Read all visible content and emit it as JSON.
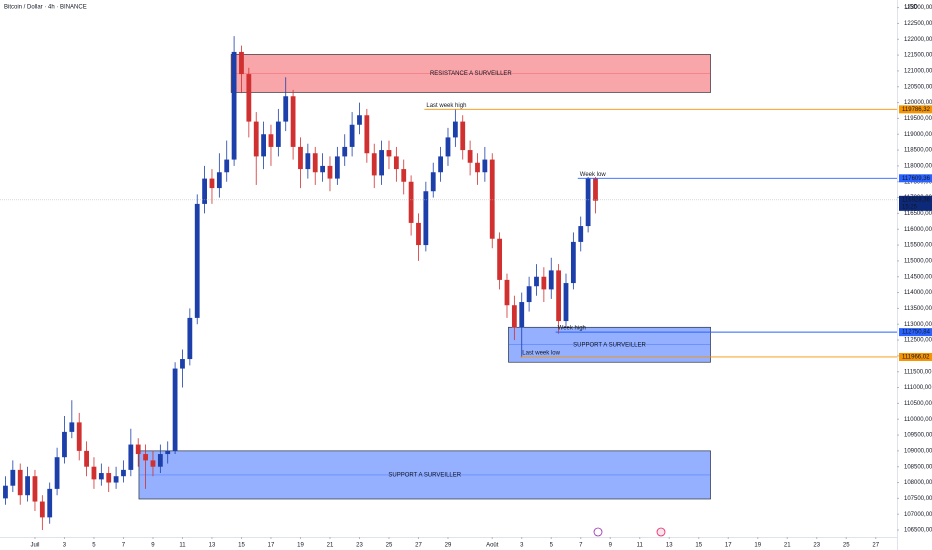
{
  "chart_data": {
    "type": "candlestick",
    "title": "Bitcoin / Dollar · 4h · BINANCE",
    "currency": "USD",
    "up_color": "#1c3faa",
    "down_color": "#d0302f",
    "x": [
      -2,
      -1.5,
      -1,
      -0.5,
      0,
      0.5,
      1,
      1.5,
      2,
      2.5,
      3,
      3.5,
      4,
      4.5,
      5,
      5.5,
      6,
      6.5,
      7,
      7.5,
      8,
      8.5,
      9,
      9.5,
      10,
      10.5,
      11,
      11.5,
      12,
      12.5,
      13,
      13.5,
      14,
      14.5,
      15,
      15.5,
      16,
      16.5,
      17,
      17.5,
      18,
      18.5,
      19,
      19.5,
      20,
      20.5,
      21,
      21.5,
      22,
      22.5,
      23,
      23.5,
      24,
      24.5,
      25,
      25.5,
      26,
      26.5,
      27,
      27.5,
      28,
      28.5,
      29,
      29.5,
      30,
      30.5,
      31,
      31.5,
      32,
      32.5,
      33,
      33.5,
      34,
      34.5,
      35,
      35.5,
      36,
      36.5,
      37,
      37.5,
      38
    ],
    "open": [
      107500,
      107900,
      108400,
      107600,
      108200,
      107400,
      106900,
      107800,
      108800,
      109600,
      109900,
      109000,
      108500,
      108100,
      108300,
      108000,
      108200,
      108400,
      109200,
      108900,
      108700,
      108500,
      108900,
      109000,
      111600,
      111900,
      113200,
      116800,
      117600,
      117300,
      117800,
      118200,
      121600,
      120900,
      119400,
      118300,
      119000,
      118600,
      119400,
      120200,
      118600,
      117900,
      118400,
      117800,
      118000,
      117600,
      118300,
      118600,
      119300,
      119600,
      118400,
      117700,
      118500,
      118300,
      117900,
      117500,
      116200,
      115500,
      117200,
      117800,
      118300,
      118900,
      119400,
      118500,
      118100,
      117800,
      118200,
      115700,
      114400,
      113600,
      112900,
      113700,
      114200,
      114500,
      114100,
      114700,
      113100,
      114300,
      115600,
      116100,
      117600
    ],
    "high": [
      108200,
      108700,
      108600,
      108500,
      108400,
      107600,
      108000,
      109100,
      110100,
      110600,
      110200,
      109300,
      108800,
      108600,
      108500,
      108500,
      108700,
      109700,
      109400,
      109200,
      109000,
      109200,
      109300,
      111800,
      112200,
      113500,
      117100,
      118000,
      117900,
      118400,
      118800,
      122100,
      121800,
      121100,
      119700,
      119400,
      119300,
      119800,
      120800,
      120400,
      118900,
      118700,
      118600,
      118400,
      118300,
      118600,
      119000,
      119700,
      120000,
      119800,
      118700,
      118800,
      118800,
      118600,
      118200,
      117700,
      116500,
      117500,
      118100,
      118600,
      119200,
      119800,
      119600,
      118800,
      118400,
      118600,
      118400,
      115900,
      114600,
      113900,
      114000,
      114500,
      114900,
      114800,
      115100,
      114900,
      114600,
      115900,
      116400,
      117650,
      117650
    ],
    "low": [
      107300,
      107700,
      107300,
      107400,
      107100,
      106500,
      106700,
      107600,
      108600,
      109400,
      108700,
      108200,
      107800,
      107900,
      107700,
      107800,
      108000,
      108200,
      108500,
      107800,
      108200,
      108300,
      108600,
      108900,
      111000,
      111700,
      113000,
      116500,
      116800,
      117000,
      117500,
      118000,
      120300,
      118900,
      117400,
      117900,
      118000,
      118300,
      119100,
      118200,
      117300,
      117600,
      117400,
      117500,
      117200,
      117400,
      118000,
      118300,
      119000,
      118100,
      117300,
      117400,
      117900,
      117500,
      117100,
      115800,
      115000,
      115300,
      117000,
      117500,
      118000,
      118600,
      118200,
      117700,
      117400,
      117500,
      115400,
      114100,
      113200,
      112500,
      111950,
      113400,
      113900,
      113700,
      113800,
      112700,
      112900,
      114100,
      115300,
      115900,
      116500
    ],
    "close": [
      107900,
      108400,
      107600,
      108200,
      107400,
      106900,
      107800,
      108800,
      109600,
      109900,
      109000,
      108500,
      108100,
      108300,
      108000,
      108200,
      108400,
      109200,
      108900,
      108700,
      108500,
      108900,
      109000,
      111600,
      111900,
      113200,
      116800,
      117600,
      117300,
      117800,
      118200,
      121600,
      120900,
      119400,
      118300,
      119000,
      118600,
      119400,
      120200,
      118600,
      117900,
      118400,
      117800,
      118000,
      117600,
      118300,
      118600,
      119300,
      119600,
      118400,
      117700,
      118500,
      118300,
      117900,
      117500,
      116200,
      115500,
      117200,
      117800,
      118300,
      118900,
      119400,
      118500,
      118100,
      117800,
      118200,
      115700,
      114400,
      113600,
      112900,
      113700,
      114200,
      114500,
      114100,
      114700,
      113100,
      114300,
      115600,
      116100,
      117600,
      116900
    ],
    "xlim": [
      -2.37,
      58.44
    ],
    "xticks": [
      {
        "value": 0,
        "label": "Juil"
      },
      {
        "value": 2,
        "label": "3"
      },
      {
        "value": 4,
        "label": "5"
      },
      {
        "value": 6,
        "label": "7"
      },
      {
        "value": 8,
        "label": "9"
      },
      {
        "value": 10,
        "label": "11"
      },
      {
        "value": 12,
        "label": "13"
      },
      {
        "value": 14,
        "label": "15"
      },
      {
        "value": 16,
        "label": "17"
      },
      {
        "value": 18,
        "label": "19"
      },
      {
        "value": 20,
        "label": "21"
      },
      {
        "value": 22,
        "label": "23"
      },
      {
        "value": 24,
        "label": "25"
      },
      {
        "value": 26,
        "label": "27"
      },
      {
        "value": 28,
        "label": "29"
      },
      {
        "value": 31,
        "label": "Août"
      },
      {
        "value": 33,
        "label": "3"
      },
      {
        "value": 35,
        "label": "5"
      },
      {
        "value": 37,
        "label": "7"
      },
      {
        "value": 39,
        "label": "9"
      },
      {
        "value": 41,
        "label": "11"
      },
      {
        "value": 43,
        "label": "13"
      },
      {
        "value": 45,
        "label": "15"
      },
      {
        "value": 47,
        "label": "17"
      },
      {
        "value": 49,
        "label": "19"
      },
      {
        "value": 51,
        "label": "21"
      },
      {
        "value": 53,
        "label": "23"
      },
      {
        "value": 55,
        "label": "25"
      },
      {
        "value": 57,
        "label": "27"
      }
    ],
    "ylim": [
      106280,
      123240
    ],
    "yticks": [
      {
        "value": 106500,
        "label": "106500,00"
      },
      {
        "value": 107000,
        "label": "107000,00"
      },
      {
        "value": 107500,
        "label": "107500,00"
      },
      {
        "value": 108000,
        "label": "108000,00"
      },
      {
        "value": 108500,
        "label": "108500,00"
      },
      {
        "value": 109000,
        "label": "109000,00"
      },
      {
        "value": 109500,
        "label": "109500,00"
      },
      {
        "value": 110000,
        "label": "110000,00"
      },
      {
        "value": 110500,
        "label": "110500,00"
      },
      {
        "value": 111000,
        "label": "111000,00"
      },
      {
        "value": 111500,
        "label": "111500,00"
      },
      {
        "value": 112000,
        "label": "112000,00"
      },
      {
        "value": 112500,
        "label": "112500,00"
      },
      {
        "value": 113000,
        "label": "113000,00"
      },
      {
        "value": 113500,
        "label": "113500,00"
      },
      {
        "value": 114000,
        "label": "114000,00"
      },
      {
        "value": 114500,
        "label": "114500,00"
      },
      {
        "value": 115000,
        "label": "115000,00"
      },
      {
        "value": 115500,
        "label": "115500,00"
      },
      {
        "value": 116000,
        "label": "116000,00"
      },
      {
        "value": 116500,
        "label": "116500,00"
      },
      {
        "value": 117000,
        "label": "117000,00"
      },
      {
        "value": 117500,
        "label": "117500,00"
      },
      {
        "value": 118000,
        "label": "118000,00"
      },
      {
        "value": 118500,
        "label": "118500,00"
      },
      {
        "value": 119000,
        "label": "119000,00"
      },
      {
        "value": 119500,
        "label": "119500,00"
      },
      {
        "value": 120000,
        "label": "120000,00"
      },
      {
        "value": 120500,
        "label": "120500,00"
      },
      {
        "value": 121000,
        "label": "121000,00"
      },
      {
        "value": 121500,
        "label": "121500,00"
      },
      {
        "value": 122000,
        "label": "122000,00"
      },
      {
        "value": 122500,
        "label": "122500,00"
      },
      {
        "value": 123000,
        "label": "123000,00"
      }
    ],
    "zones": [
      {
        "label": "RESISTANCE A SURVEILLER",
        "range": [
          120320,
          121520
        ],
        "x": [
          13.3,
          45.8
        ],
        "color": "#f44d57"
      },
      {
        "label": "SUPPORT A SURVEILLER",
        "range": [
          111800,
          112905
        ],
        "x": [
          32.1,
          45.8
        ],
        "color": "#2962ff"
      },
      {
        "label": "SUPPORT A SURVEILLER",
        "range": [
          107480,
          109000
        ],
        "x": [
          7.05,
          45.8
        ],
        "color": "#2962ff"
      }
    ],
    "levels": [
      {
        "name": "Last week high",
        "value": 119786.32,
        "label": "119786,32",
        "x": 26.4,
        "color": "#f59300"
      },
      {
        "name": "Week low",
        "value": 117609.36,
        "label": "117609,36",
        "x": 36.8,
        "color": "#2962ff"
      },
      {
        "name": "Week high",
        "value": 112750.84,
        "label": "112750,84",
        "x": 35.3,
        "color": "#2962ff"
      },
      {
        "name": "Last week low",
        "value": 111966.02,
        "label": "111966,02",
        "x": 32.9,
        "color": "#f59300"
      }
    ],
    "last_price": {
      "value": 116928.36,
      "label": "116928,36",
      "countdown": "15:25",
      "color": "#0d2a7a"
    }
  }
}
